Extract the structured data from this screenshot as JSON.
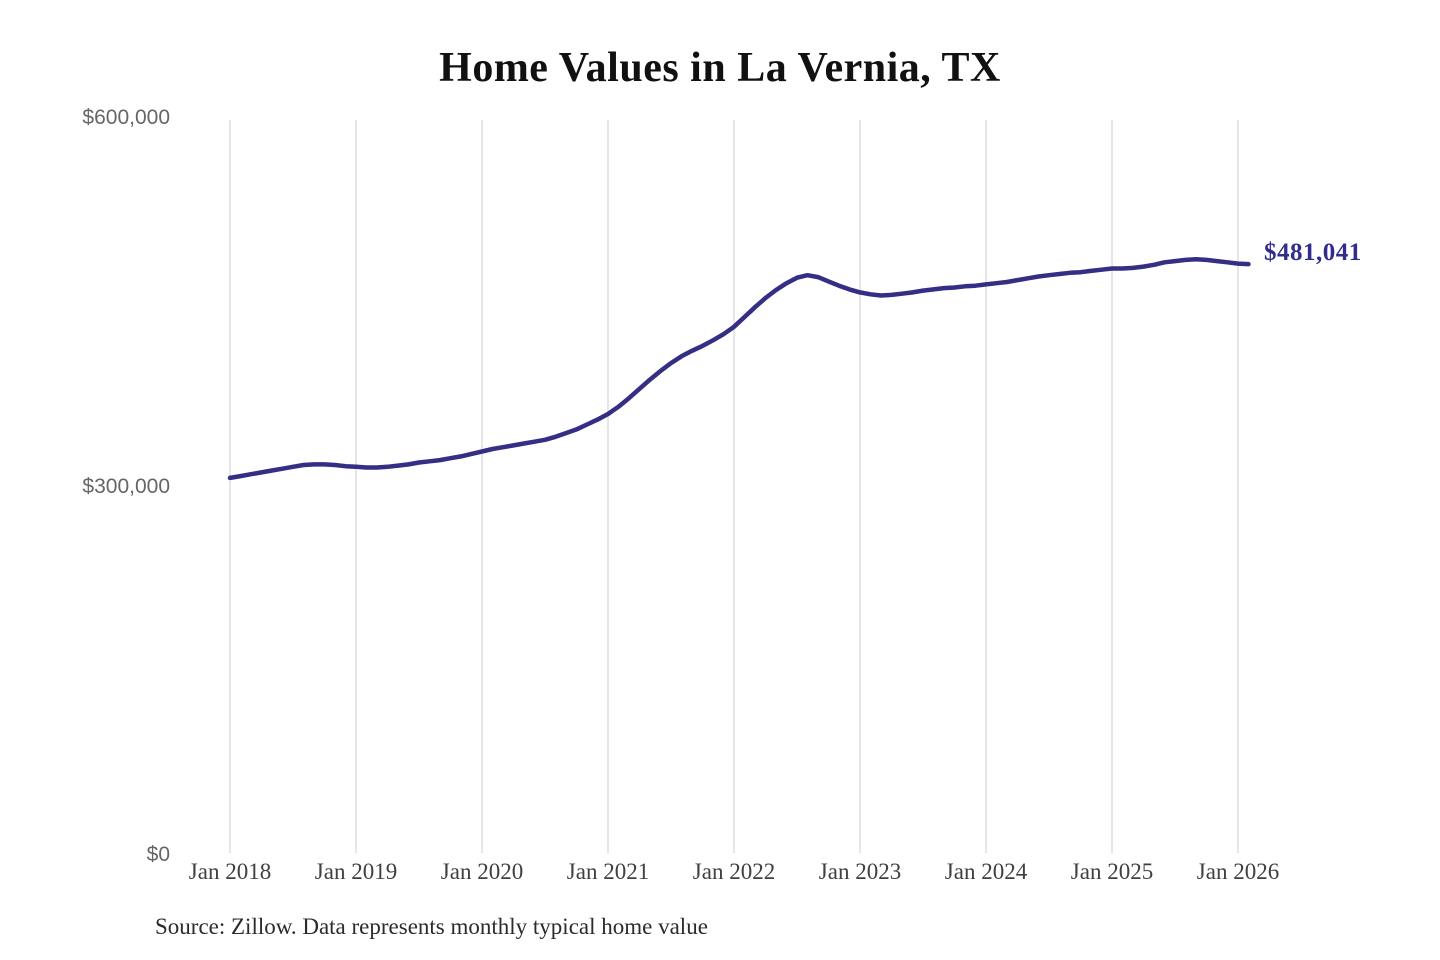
{
  "page": {
    "background": "#ffffff"
  },
  "chart_data": {
    "type": "line",
    "title": "Home Values in La Vernia, TX",
    "source": "Source: Zillow. Data represents monthly typical home value",
    "end_label": "$481,041",
    "end_value": 481041,
    "series_name": "Monthly typical home value",
    "frequency": "monthly",
    "x_start": "2018-01",
    "x_end": "2026-02",
    "x_ticks": [
      "Jan 2018",
      "Jan 2019",
      "Jan 2020",
      "Jan 2021",
      "Jan 2022",
      "Jan 2023",
      "Jan 2024",
      "Jan 2025",
      "Jan 2026"
    ],
    "y_ticks": [
      {
        "value": 0,
        "label": "$0"
      },
      {
        "value": 300000,
        "label": "$300,000"
      },
      {
        "value": 600000,
        "label": "$600,000"
      }
    ],
    "ylim": [
      0,
      600000
    ],
    "grid": "vertical-only",
    "legend": "none",
    "colors": {
      "line": "#352e85",
      "value_label": "#322d8c",
      "gridline": "#cccccc",
      "axis_label_y": "#666666",
      "axis_label_x": "#404040",
      "title": "#111111",
      "source": "#2b2b2b"
    },
    "values": [
      307000,
      308500,
      310000,
      311500,
      313000,
      314500,
      316000,
      317500,
      318000,
      318000,
      317500,
      316500,
      316000,
      315500,
      315500,
      316000,
      317000,
      318000,
      319500,
      320500,
      321500,
      323000,
      324500,
      326500,
      328500,
      330500,
      332000,
      333500,
      335000,
      336500,
      338000,
      340500,
      343500,
      346500,
      350500,
      354500,
      359000,
      365000,
      372000,
      379500,
      387000,
      394000,
      400500,
      406000,
      410500,
      414500,
      419000,
      424000,
      430000,
      438000,
      446000,
      453500,
      460000,
      465500,
      470000,
      472000,
      470500,
      467000,
      463500,
      460500,
      458000,
      456500,
      455500,
      456000,
      457000,
      458000,
      459500,
      460500,
      461500,
      462000,
      463000,
      463500,
      464500,
      465500,
      466500,
      468000,
      469500,
      471000,
      472000,
      473000,
      474000,
      474500,
      475500,
      476500,
      477500,
      477500,
      478000,
      479000,
      480500,
      482500,
      483500,
      484500,
      485000,
      484500,
      483500,
      482500,
      481500,
      481041
    ]
  }
}
